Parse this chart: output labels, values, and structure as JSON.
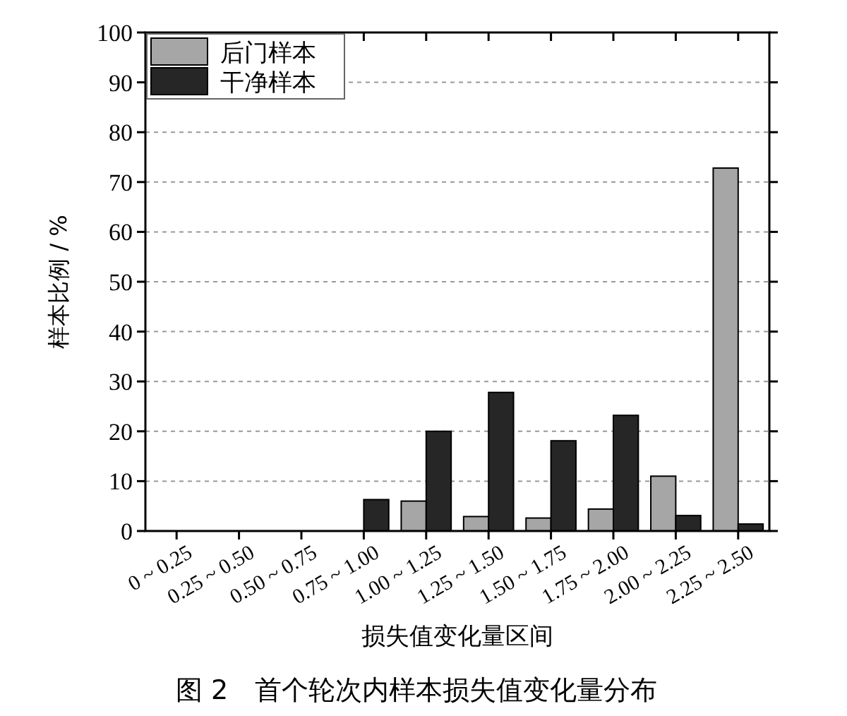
{
  "chart_data": {
    "type": "bar",
    "title": "图 2　首个轮次内样本损失值变化量分布",
    "xlabel": "损失值变化量区间",
    "ylabel": "样本比例 / %",
    "categories": [
      "0 ~ 0.25",
      "0.25 ~ 0.50",
      "0.50 ~ 0.75",
      "0.75 ~ 1.00",
      "1.00 ~ 1.25",
      "1.25 ~ 1.50",
      "1.50 ~ 1.75",
      "1.75 ~ 2.00",
      "2.00 ~ 2.25",
      "2.25 ~ 2.50"
    ],
    "series": [
      {
        "name": "后门样本",
        "color": "#a6a6a6",
        "values": [
          0,
          0,
          0,
          0,
          6.0,
          2.9,
          2.6,
          4.4,
          11.0,
          72.8
        ]
      },
      {
        "name": "干净样本",
        "color": "#262626",
        "values": [
          0,
          0,
          0,
          6.3,
          20.0,
          27.8,
          18.1,
          23.2,
          3.1,
          1.4
        ]
      }
    ],
    "ylim": [
      0,
      100
    ],
    "yticks": [
      0,
      10,
      20,
      30,
      40,
      50,
      60,
      70,
      80,
      90,
      100
    ],
    "grid": "y",
    "legend": "top left"
  }
}
